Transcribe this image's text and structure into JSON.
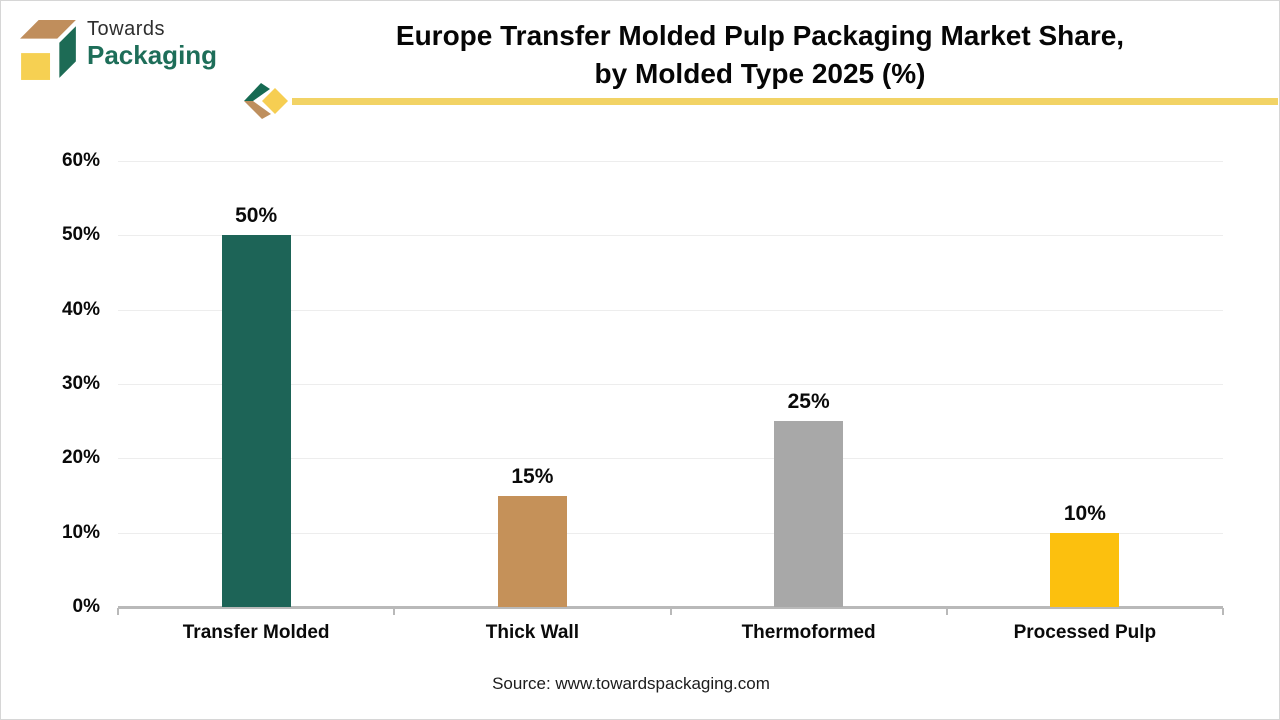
{
  "logo": {
    "name_line1": "Towards",
    "name_line2": "Packaging",
    "colors": {
      "tan": "#c08e5c",
      "green": "#1d6b55",
      "yellow": "#f6d052"
    }
  },
  "header": {
    "title_line1": "Europe Transfer Molded Pulp Packaging Market Share,",
    "title_line2": "by Molded Type 2025 (%)",
    "accent_line_color": "#f2d365"
  },
  "chart_data": {
    "type": "bar",
    "title": "Europe Transfer Molded Pulp Packaging Market Share, by Molded Type 2025 (%)",
    "categories": [
      "Transfer Molded",
      "Thick Wall",
      "Thermoformed",
      "Processed Pulp"
    ],
    "values": [
      50,
      15,
      25,
      10
    ],
    "data_labels": [
      "50%",
      "15%",
      "25%",
      "10%"
    ],
    "bar_colors": [
      "#1d6457",
      "#c59159",
      "#a8a8a8",
      "#fcc00e"
    ],
    "xlabel": "",
    "ylabel": "",
    "ylim": [
      0,
      60
    ],
    "ytick_step": 10,
    "yticks": [
      "0%",
      "10%",
      "20%",
      "30%",
      "40%",
      "50%",
      "60%"
    ],
    "grid": true,
    "gridline_color": "#ededed",
    "axis_color": "#b9b9b9",
    "legend": "none"
  },
  "footer": {
    "source": "Source: www.towardspackaging.com"
  }
}
